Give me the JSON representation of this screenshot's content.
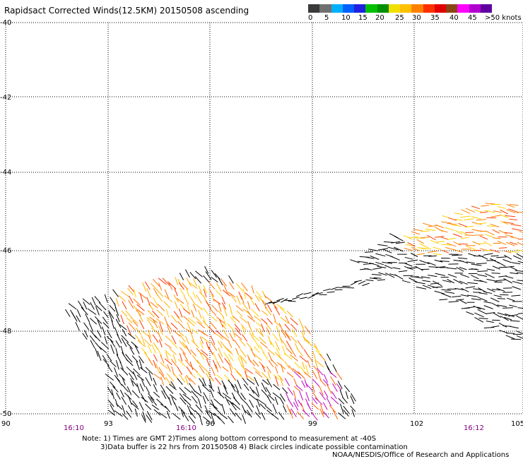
{
  "title": "Rapidsact Corrected Winds(12.5KM) 20150508 ascending",
  "colorbar": {
    "colors": [
      "#3a3a3a",
      "#707070",
      "#00b0ff",
      "#0060ff",
      "#2020e0",
      "#00c000",
      "#009000",
      "#f0e000",
      "#ffc000",
      "#ff8000",
      "#ff3000",
      "#e00000",
      "#8b4513",
      "#ff00ff",
      "#b000d0",
      "#6000a0"
    ],
    "labels": [
      "0",
      "5",
      "10",
      "15",
      "20",
      "25",
      "30",
      "35",
      "40",
      "45",
      ">50 knots"
    ]
  },
  "axes": {
    "lat_labels": [
      "-40",
      "-42",
      "-44",
      "-46",
      "-48",
      "-50"
    ],
    "lon_labels": [
      "90",
      "93",
      "96",
      "99",
      "102",
      "105"
    ],
    "time_labels": [
      "16:10",
      "16:10",
      "16:12"
    ]
  },
  "notes": {
    "line1": "Note: 1) Times are GMT 2)Times along bottom correspond to measurement at -40S",
    "line2": "3)Data buffer is 22 hrs from 20150508 4) Black circles indicate possible contamination",
    "credit": "NOAA/NESDIS/Office of Research and Applications"
  }
}
